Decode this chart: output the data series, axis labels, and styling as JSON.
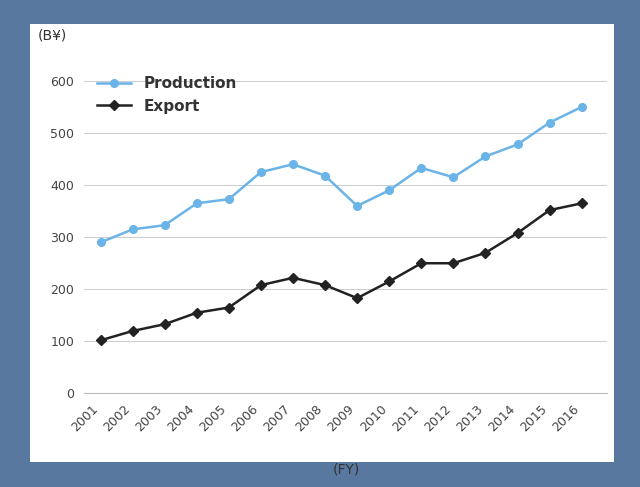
{
  "years": [
    2001,
    2002,
    2003,
    2004,
    2005,
    2006,
    2007,
    2008,
    2009,
    2010,
    2011,
    2012,
    2013,
    2014,
    2015,
    2016
  ],
  "production": [
    290,
    315,
    323,
    365,
    373,
    425,
    440,
    418,
    360,
    390,
    433,
    415,
    455,
    478,
    520,
    550
  ],
  "export": [
    102,
    120,
    133,
    155,
    165,
    208,
    222,
    208,
    183,
    215,
    250,
    250,
    270,
    308,
    352,
    365
  ],
  "production_color": "#6ab4e8",
  "export_color": "#222222",
  "bg_outer": "#5878a0",
  "bg_inner": "#ffffff",
  "ylabel": "(B¥)",
  "xlabel": "(FY)",
  "ylim": [
    0,
    630
  ],
  "yticks": [
    0,
    100,
    200,
    300,
    400,
    500,
    600
  ],
  "legend_production": "Production",
  "legend_export": "Export",
  "grid_color": "#cccccc",
  "label_fontsize": 10,
  "tick_fontsize": 9,
  "legend_fontsize": 11
}
